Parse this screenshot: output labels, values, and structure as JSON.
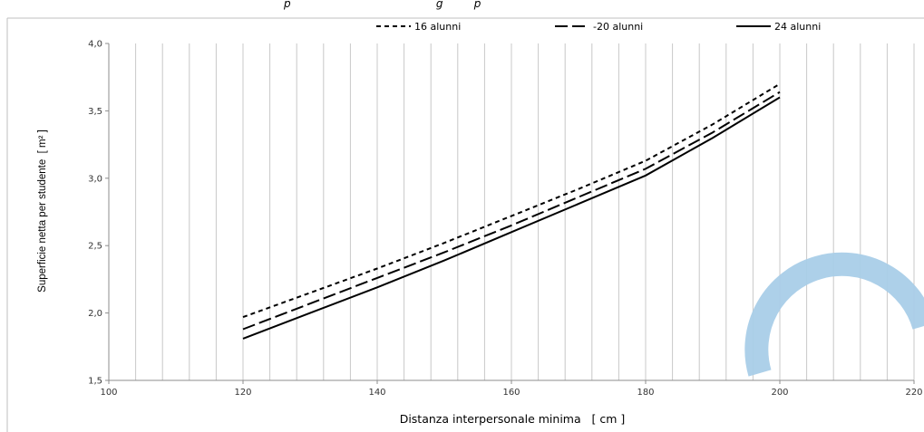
{
  "chart_data": {
    "type": "line",
    "top_text": "p                                          g         p",
    "xlabel": "Distanza interpersonale minima   [ cm ]",
    "ylabel": "Superficie netta per studente  [ m² ]",
    "xlim": [
      100,
      220
    ],
    "ylim": [
      1.5,
      4.0
    ],
    "x_ticks": [
      100,
      120,
      140,
      160,
      180,
      200,
      220
    ],
    "x_tick_labels": [
      "100",
      "120",
      "140",
      "160",
      "180",
      "200",
      "220"
    ],
    "y_ticks": [
      1.5,
      2.0,
      2.5,
      3.0,
      3.5,
      4.0
    ],
    "y_tick_labels": [
      "1,5",
      "2,0",
      "2,5",
      "3,0",
      "3,5",
      "4,0"
    ],
    "grid": "vertical",
    "legend_position": "top",
    "series": [
      {
        "name": "16 alunni",
        "style": "dotted",
        "x": [
          120,
          130,
          140,
          150,
          160,
          170,
          180,
          190,
          200
        ],
        "y": [
          1.97,
          2.15,
          2.33,
          2.52,
          2.72,
          2.92,
          3.13,
          3.4,
          3.7
        ]
      },
      {
        "name": "-20 alunni",
        "style": "dashed",
        "x": [
          120,
          130,
          140,
          150,
          160,
          170,
          180,
          190,
          200
        ],
        "y": [
          1.88,
          2.07,
          2.26,
          2.45,
          2.65,
          2.86,
          3.07,
          3.34,
          3.64
        ]
      },
      {
        "name": "24 alunni",
        "style": "solid",
        "x": [
          120,
          130,
          140,
          150,
          160,
          170,
          180,
          190,
          200
        ],
        "y": [
          1.81,
          2.0,
          2.19,
          2.39,
          2.6,
          2.81,
          3.02,
          3.3,
          3.6
        ]
      }
    ]
  },
  "colors": {
    "line": "#000000",
    "grid": "#c8c8c8",
    "frame": "#bfbfbf",
    "watermark": "#a9cde8"
  },
  "watermark_icon": "arc-watermark"
}
